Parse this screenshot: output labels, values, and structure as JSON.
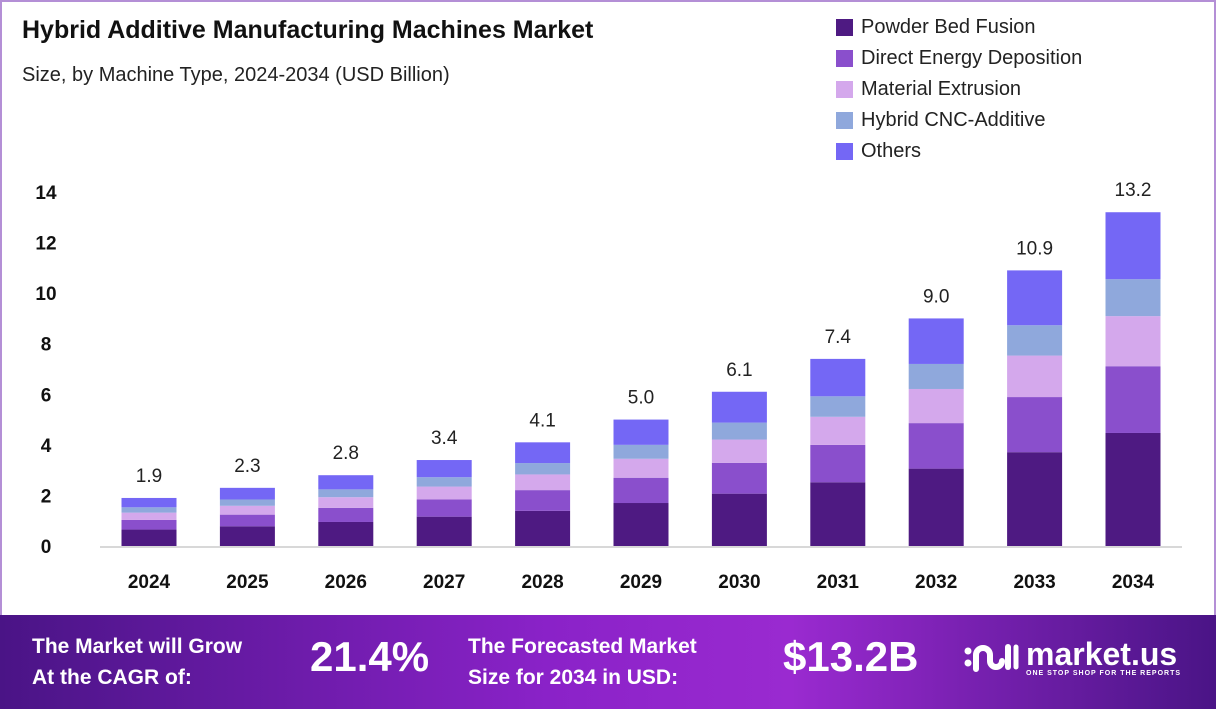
{
  "chart_data": {
    "type": "bar",
    "stacked": true,
    "title": "Hybrid Additive Manufacturing Machines Market",
    "subtitle": "Size, by Machine Type, 2024-2034 (USD Billion)",
    "categories": [
      "2024",
      "2025",
      "2026",
      "2027",
      "2028",
      "2029",
      "2030",
      "2031",
      "2032",
      "2033",
      "2034"
    ],
    "totals": [
      "1.9",
      "2.3",
      "2.8",
      "3.4",
      "4.1",
      "5.0",
      "6.1",
      "7.4",
      "9.0",
      "10.9",
      "13.2"
    ],
    "series": [
      {
        "name": "Powder Bed Fusion",
        "color": "#4e1a82",
        "values": [
          0.65,
          0.78,
          0.95,
          1.16,
          1.39,
          1.7,
          2.07,
          2.52,
          3.06,
          3.71,
          4.47
        ]
      },
      {
        "name": "Direct Energy Deposition",
        "color": "#8a4fcc",
        "values": [
          0.38,
          0.46,
          0.56,
          0.68,
          0.82,
          1.0,
          1.22,
          1.48,
          1.8,
          2.18,
          2.64
        ]
      },
      {
        "name": "Material Extrusion",
        "color": "#d4a8ec",
        "values": [
          0.29,
          0.35,
          0.42,
          0.51,
          0.62,
          0.75,
          0.92,
          1.11,
          1.35,
          1.64,
          1.98
        ]
      },
      {
        "name": "Hybrid CNC-Additive",
        "color": "#8fa8dc",
        "values": [
          0.21,
          0.25,
          0.31,
          0.37,
          0.45,
          0.55,
          0.67,
          0.81,
          0.99,
          1.2,
          1.46
        ]
      },
      {
        "name": "Others",
        "color": "#7467f5",
        "values": [
          0.37,
          0.46,
          0.56,
          0.68,
          0.82,
          1.0,
          1.22,
          1.48,
          1.8,
          2.17,
          2.65
        ]
      }
    ],
    "yticks": [
      "0",
      "2",
      "4",
      "6",
      "8",
      "10",
      "12",
      "14"
    ],
    "ylim": [
      0,
      14
    ],
    "grid": false,
    "legend": "top-right"
  },
  "footer": {
    "cagr_label_1": "The Market will Grow",
    "cagr_label_2": "At the CAGR of:",
    "cagr_value": "21.4%",
    "forecast_label_1": "The Forecasted Market",
    "forecast_label_2": "Size for 2034 in USD:",
    "forecast_value": "$13.2B",
    "logo_name": "market.us",
    "logo_tagline": "ONE STOP SHOP FOR THE REPORTS"
  }
}
